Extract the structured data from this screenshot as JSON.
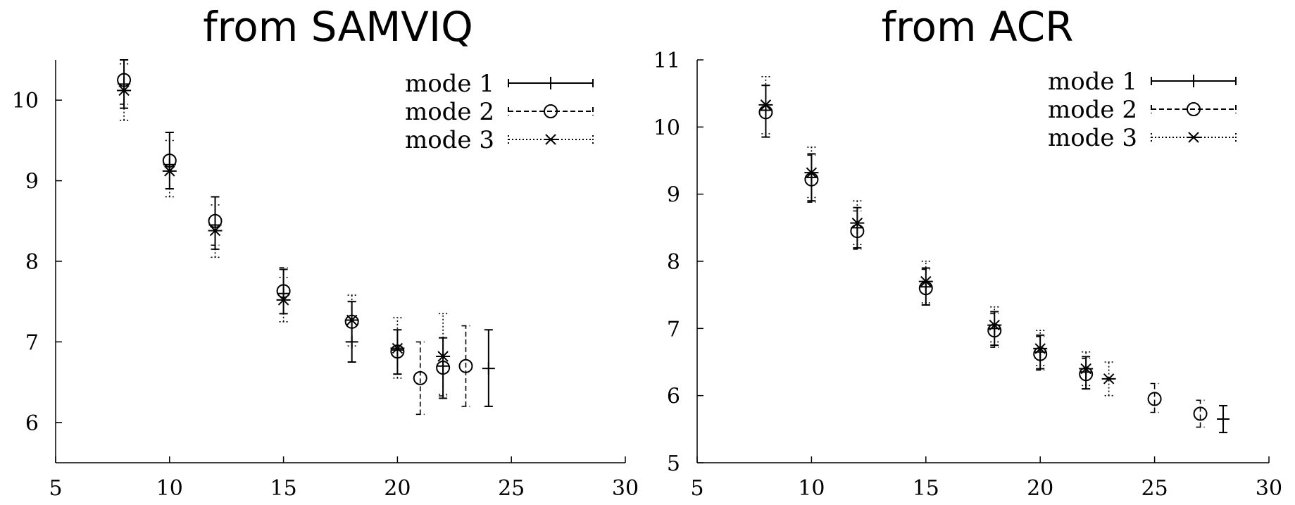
{
  "chart_data": [
    {
      "type": "scatter",
      "title": "from SAMVIQ",
      "xlim": [
        5,
        30
      ],
      "ylim": [
        5.5,
        10.5
      ],
      "xticks": [
        5,
        10,
        15,
        20,
        25,
        30
      ],
      "yticks": [
        6,
        7,
        8,
        9,
        10
      ],
      "legend_position": "top-right",
      "series": [
        {
          "name": "mode 1",
          "marker": "plus",
          "line": "solid",
          "points": [
            {
              "x": 8,
              "y": 10.2,
              "lo": 9.9,
              "hi": 10.5
            },
            {
              "x": 10,
              "y": 9.2,
              "lo": 8.9,
              "hi": 9.6
            },
            {
              "x": 12,
              "y": 8.45,
              "lo": 8.15,
              "hi": 8.8
            },
            {
              "x": 15,
              "y": 7.6,
              "lo": 7.35,
              "hi": 7.9
            },
            {
              "x": 18,
              "y": 7.0,
              "lo": 6.75,
              "hi": 7.5
            },
            {
              "x": 20,
              "y": 6.9,
              "lo": 6.6,
              "hi": 7.15
            },
            {
              "x": 22,
              "y": 6.7,
              "lo": 6.3,
              "hi": 7.05
            },
            {
              "x": 24,
              "y": 6.67,
              "lo": 6.2,
              "hi": 7.15
            }
          ]
        },
        {
          "name": "mode 2",
          "marker": "circle",
          "line": "dashed",
          "points": [
            {
              "x": 8,
              "y": 10.25,
              "lo": 9.95,
              "hi": 10.5
            },
            {
              "x": 10,
              "y": 9.25,
              "lo": 8.9,
              "hi": 9.6
            },
            {
              "x": 12,
              "y": 8.5,
              "lo": 8.2,
              "hi": 8.8
            },
            {
              "x": 15,
              "y": 7.63,
              "lo": 7.35,
              "hi": 7.92
            },
            {
              "x": 18,
              "y": 7.25,
              "lo": 7.0,
              "hi": 7.5
            },
            {
              "x": 20,
              "y": 6.88,
              "lo": 6.6,
              "hi": 7.15
            },
            {
              "x": 21,
              "y": 6.55,
              "lo": 6.1,
              "hi": 7.0
            },
            {
              "x": 22,
              "y": 6.68,
              "lo": 6.33,
              "hi": 7.05
            },
            {
              "x": 23,
              "y": 6.7,
              "lo": 6.2,
              "hi": 7.2
            }
          ]
        },
        {
          "name": "mode 3",
          "marker": "star",
          "line": "dotted",
          "points": [
            {
              "x": 8,
              "y": 10.12,
              "lo": 9.75,
              "hi": 10.45
            },
            {
              "x": 10,
              "y": 9.12,
              "lo": 8.8,
              "hi": 9.5
            },
            {
              "x": 12,
              "y": 8.38,
              "lo": 8.05,
              "hi": 8.7
            },
            {
              "x": 15,
              "y": 7.52,
              "lo": 7.25,
              "hi": 7.8
            },
            {
              "x": 18,
              "y": 7.27,
              "lo": 6.95,
              "hi": 7.58
            },
            {
              "x": 20,
              "y": 6.92,
              "lo": 6.55,
              "hi": 7.3
            },
            {
              "x": 22,
              "y": 6.82,
              "lo": 6.35,
              "hi": 7.35
            }
          ]
        }
      ]
    },
    {
      "type": "scatter",
      "title": "from ACR",
      "xlim": [
        5,
        30
      ],
      "ylim": [
        5,
        11
      ],
      "xticks": [
        5,
        10,
        15,
        20,
        25,
        30
      ],
      "yticks": [
        5,
        6,
        7,
        8,
        9,
        10,
        11
      ],
      "legend_position": "top-right",
      "series": [
        {
          "name": "mode 1",
          "marker": "plus",
          "line": "solid",
          "points": [
            {
              "x": 8,
              "y": 10.25,
              "lo": 9.85,
              "hi": 10.62
            },
            {
              "x": 10,
              "y": 9.25,
              "lo": 8.9,
              "hi": 9.6
            },
            {
              "x": 12,
              "y": 8.5,
              "lo": 8.2,
              "hi": 8.8
            },
            {
              "x": 15,
              "y": 7.62,
              "lo": 7.35,
              "hi": 7.9
            },
            {
              "x": 18,
              "y": 7.0,
              "lo": 6.75,
              "hi": 7.25
            },
            {
              "x": 20,
              "y": 6.65,
              "lo": 6.4,
              "hi": 6.9
            },
            {
              "x": 22,
              "y": 6.35,
              "lo": 6.1,
              "hi": 6.58
            },
            {
              "x": 28,
              "y": 5.65,
              "lo": 5.45,
              "hi": 5.85
            }
          ]
        },
        {
          "name": "mode 2",
          "marker": "circle",
          "line": "dashed",
          "points": [
            {
              "x": 8,
              "y": 10.22,
              "lo": 9.85,
              "hi": 10.62
            },
            {
              "x": 10,
              "y": 9.22,
              "lo": 8.88,
              "hi": 9.58
            },
            {
              "x": 12,
              "y": 8.45,
              "lo": 8.18,
              "hi": 8.75
            },
            {
              "x": 15,
              "y": 7.6,
              "lo": 7.35,
              "hi": 7.88
            },
            {
              "x": 18,
              "y": 6.97,
              "lo": 6.72,
              "hi": 7.22
            },
            {
              "x": 20,
              "y": 6.62,
              "lo": 6.38,
              "hi": 6.88
            },
            {
              "x": 22,
              "y": 6.32,
              "lo": 6.1,
              "hi": 6.55
            },
            {
              "x": 25,
              "y": 5.95,
              "lo": 5.75,
              "hi": 6.18
            },
            {
              "x": 27,
              "y": 5.73,
              "lo": 5.53,
              "hi": 5.93
            }
          ]
        },
        {
          "name": "mode 3",
          "marker": "star",
          "line": "dotted",
          "points": [
            {
              "x": 8,
              "y": 10.33,
              "lo": 9.9,
              "hi": 10.75
            },
            {
              "x": 10,
              "y": 9.32,
              "lo": 8.95,
              "hi": 9.7
            },
            {
              "x": 12,
              "y": 8.57,
              "lo": 8.25,
              "hi": 8.9
            },
            {
              "x": 15,
              "y": 7.7,
              "lo": 7.38,
              "hi": 8.0
            },
            {
              "x": 18,
              "y": 7.05,
              "lo": 6.8,
              "hi": 7.32
            },
            {
              "x": 20,
              "y": 6.7,
              "lo": 6.45,
              "hi": 6.97
            },
            {
              "x": 22,
              "y": 6.4,
              "lo": 6.15,
              "hi": 6.65
            },
            {
              "x": 23,
              "y": 6.25,
              "lo": 6.0,
              "hi": 6.5
            }
          ]
        }
      ]
    }
  ]
}
